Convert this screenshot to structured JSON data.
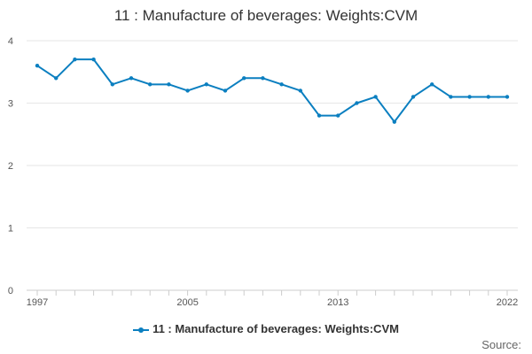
{
  "chart_data": {
    "type": "line",
    "title": "11 : Manufacture of beverages: Weights:CVM",
    "xlabel": "",
    "ylabel": "",
    "x": [
      1997,
      1998,
      1999,
      2000,
      2001,
      2002,
      2003,
      2004,
      2005,
      2006,
      2007,
      2008,
      2009,
      2010,
      2011,
      2012,
      2013,
      2014,
      2015,
      2016,
      2017,
      2018,
      2019,
      2020,
      2021,
      2022
    ],
    "series": [
      {
        "name": "11 : Manufacture of beverages: Weights:CVM",
        "values": [
          3.6,
          3.4,
          3.7,
          3.7,
          3.3,
          3.4,
          3.3,
          3.3,
          3.2,
          3.3,
          3.2,
          3.4,
          3.4,
          3.3,
          3.2,
          2.8,
          2.8,
          3.0,
          3.1,
          2.7,
          3.1,
          3.3,
          3.1,
          3.1,
          3.1,
          3.1
        ],
        "color": "#0b7fc0"
      }
    ],
    "ylim": [
      0,
      4
    ],
    "yticks": [
      0,
      1,
      2,
      3,
      4
    ],
    "xtick_labels": [
      1997,
      2005,
      2013,
      2022
    ],
    "legend": "bottom",
    "grid": true
  },
  "source_label": "Source:"
}
